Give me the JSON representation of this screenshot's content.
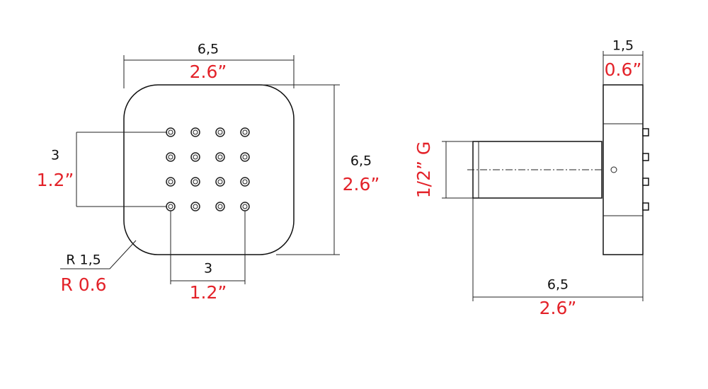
{
  "front_view": {
    "width": {
      "metric": "6,5",
      "imperial": "2.6”"
    },
    "height": {
      "metric": "6,5",
      "imperial": "2.6”"
    },
    "hole_spacing_vertical": {
      "metric": "3",
      "imperial": "1.2”"
    },
    "hole_spacing_horizontal": {
      "metric": "3",
      "imperial": "1.2”"
    },
    "corner_radius": {
      "metric": "R 1,5",
      "imperial": "R 0.6"
    }
  },
  "side_view": {
    "depth": {
      "metric": "1,5",
      "imperial": "0.6”"
    },
    "thread": "1/2” G",
    "length": {
      "metric": "6,5",
      "imperial": "2.6”"
    }
  }
}
